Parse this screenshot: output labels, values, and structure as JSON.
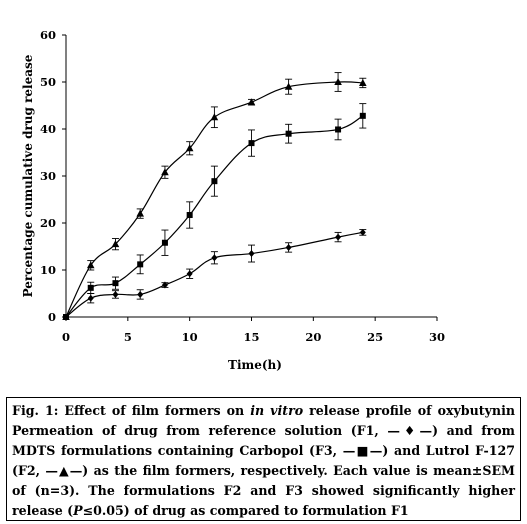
{
  "chart_data": {
    "type": "line",
    "xlabel": "Time(h)",
    "ylabel": "Percentage cumulative drug release",
    "xlim": [
      0,
      30
    ],
    "ylim": [
      0,
      60
    ],
    "x_ticks": [
      "0",
      "5",
      "10",
      "15",
      "20",
      "25",
      "30"
    ],
    "y_ticks": [
      "0",
      "10",
      "20",
      "30",
      "40",
      "50",
      "60"
    ],
    "grid": false,
    "legend": "none",
    "series": [
      {
        "marker": "diamond",
        "color": "#000000",
        "points": [
          {
            "x": 0,
            "y": 0,
            "sem": 0
          },
          {
            "x": 2,
            "y": 4,
            "sem": 1
          },
          {
            "x": 4,
            "y": 4.8,
            "sem": 0.8
          },
          {
            "x": 6,
            "y": 4.8,
            "sem": 1
          },
          {
            "x": 8,
            "y": 6.8,
            "sem": 0.5
          },
          {
            "x": 10,
            "y": 9.2,
            "sem": 1
          },
          {
            "x": 12,
            "y": 12.6,
            "sem": 1.3
          },
          {
            "x": 15,
            "y": 13.5,
            "sem": 1.8
          },
          {
            "x": 18,
            "y": 14.8,
            "sem": 1
          },
          {
            "x": 22,
            "y": 17,
            "sem": 1
          },
          {
            "x": 24,
            "y": 18,
            "sem": 0.6
          }
        ]
      },
      {
        "marker": "square",
        "color": "#000000",
        "points": [
          {
            "x": 0,
            "y": 0,
            "sem": 0
          },
          {
            "x": 2,
            "y": 6.2,
            "sem": 1.2
          },
          {
            "x": 4,
            "y": 7.2,
            "sem": 1.3
          },
          {
            "x": 6,
            "y": 11.2,
            "sem": 2
          },
          {
            "x": 8,
            "y": 15.8,
            "sem": 2.7
          },
          {
            "x": 10,
            "y": 21.7,
            "sem": 2.8
          },
          {
            "x": 12,
            "y": 28.9,
            "sem": 3.2
          },
          {
            "x": 15,
            "y": 37,
            "sem": 2.8
          },
          {
            "x": 18,
            "y": 39,
            "sem": 2
          },
          {
            "x": 22,
            "y": 39.9,
            "sem": 2.2
          },
          {
            "x": 24,
            "y": 42.8,
            "sem": 2.6
          }
        ]
      },
      {
        "marker": "triangle",
        "color": "#000000",
        "points": [
          {
            "x": 0,
            "y": 0,
            "sem": 0
          },
          {
            "x": 2,
            "y": 11,
            "sem": 1
          },
          {
            "x": 4,
            "y": 15.5,
            "sem": 1.2
          },
          {
            "x": 6,
            "y": 22,
            "sem": 1
          },
          {
            "x": 8,
            "y": 30.8,
            "sem": 1.3
          },
          {
            "x": 10,
            "y": 35.9,
            "sem": 1.4
          },
          {
            "x": 12,
            "y": 42.5,
            "sem": 2.2
          },
          {
            "x": 15,
            "y": 45.7,
            "sem": 0.6
          },
          {
            "x": 18,
            "y": 49,
            "sem": 1.6
          },
          {
            "x": 22,
            "y": 50,
            "sem": 2
          },
          {
            "x": 24,
            "y": 49.8,
            "sem": 1
          }
        ]
      }
    ]
  },
  "caption": {
    "fig_label": "Fig. 1:",
    "part1": " Effect of film formers on ",
    "italic1": "in vitro",
    "part2": " release profile of oxybutynin Permeation of drug from reference solution (F1, —♦—) and from MDTS formulations containing Carbopol (F3, —■—) and Lutrol F-127 (F2, —▲—) as the film formers, respectively. Each value is mean±SEM of (n=3). The formulations F2 and F3 showed significantly higher release (",
    "italic2": "P",
    "part3": "≤0.05) of drug as compared to formulation F1"
  }
}
